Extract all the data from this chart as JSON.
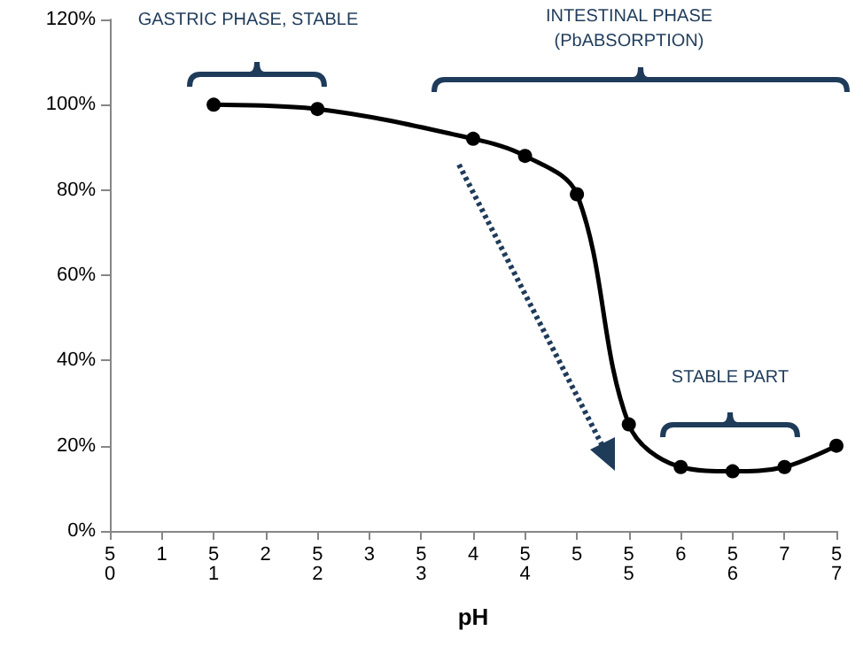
{
  "chart_data": {
    "type": "line",
    "categories": [
      "5\n0",
      "1",
      "5\n1",
      "2",
      "5\n2",
      "3",
      "5\n3",
      "4",
      "5\n4",
      "5",
      "5\n5",
      "6",
      "5\n6",
      "7",
      "5\n7"
    ],
    "series": [
      {
        "color": "#000000",
        "values": [
          null,
          null,
          100,
          null,
          99,
          null,
          null,
          92,
          88,
          79,
          25,
          15,
          14,
          15,
          20
        ]
      }
    ],
    "xlabel": "pH",
    "ylim": [
      0,
      120
    ],
    "yticks": [
      {
        "value": 0,
        "label": "0%"
      },
      {
        "value": 20,
        "label": "20%"
      },
      {
        "value": 40,
        "label": "40%"
      },
      {
        "value": 60,
        "label": "60%"
      },
      {
        "value": 80,
        "label": "80%"
      },
      {
        "value": 100,
        "label": "100%"
      },
      {
        "value": 120,
        "label": "120%"
      }
    ],
    "annotations": [
      "GASTRIC PHASE, STABLE",
      "INTESTINAL PHASE\n(PbABSORPTION)",
      "STABLE PART"
    ],
    "grid": false,
    "marker": "circle",
    "line_style": "solid"
  }
}
